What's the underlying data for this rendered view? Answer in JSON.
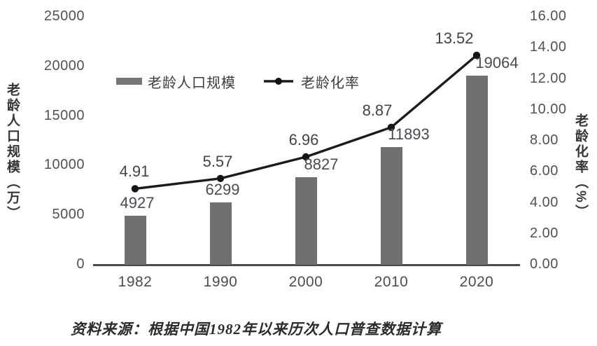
{
  "chart_data": {
    "type": "combo",
    "categories": [
      "1982",
      "1990",
      "2000",
      "2010",
      "2020"
    ],
    "series": [
      {
        "name": "老龄人口规模",
        "type": "bar",
        "axis": "left",
        "values": [
          4927,
          6299,
          8827,
          11893,
          19064
        ],
        "labels": [
          "4927",
          "6299",
          "8827",
          "11893",
          "19064"
        ],
        "color": "#6f6f6f"
      },
      {
        "name": "老龄化率",
        "type": "line",
        "axis": "right",
        "values": [
          4.91,
          5.57,
          6.96,
          8.87,
          13.52
        ],
        "labels": [
          "4.91",
          "5.57",
          "6.96",
          "8.87",
          "13.52"
        ],
        "color": "#1b1b1b"
      }
    ],
    "left_axis": {
      "label": "老龄人口规模（万）",
      "min": 0,
      "max": 25000,
      "ticks": [
        "25000",
        "20000",
        "15000",
        "10000",
        "5000",
        "0"
      ]
    },
    "right_axis": {
      "label": "老龄化率（%）",
      "min": 0,
      "max": 16,
      "ticks": [
        "16.00",
        "14.00",
        "12.00",
        "10.00",
        "8.00",
        "6.00",
        "4.00",
        "2.00",
        "0.00"
      ]
    },
    "grid": false,
    "legend_position": "top-center"
  },
  "legend": {
    "items": [
      {
        "label": "老龄人口规模",
        "marker": "bar-swatch"
      },
      {
        "label": "老龄化率",
        "marker": "line-dot"
      }
    ]
  },
  "source_note": "资料来源：根据中国1982年以来历次人口普查数据计算",
  "colors": {
    "bar": "#6f6f6f",
    "line": "#1b1b1b",
    "marker": "#141414",
    "axis_line": "#4a4a4a",
    "tick_text": "#525252",
    "data_label_text": "#474b52"
  }
}
